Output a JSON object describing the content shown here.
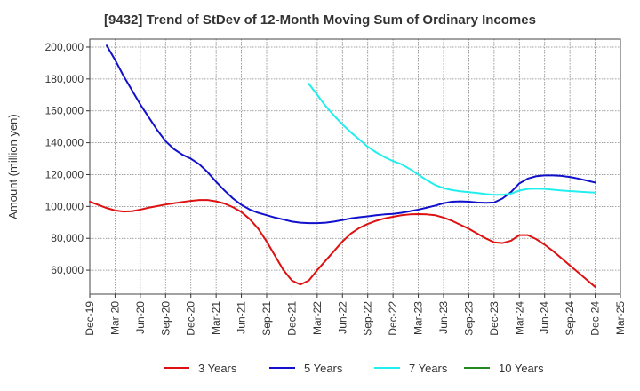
{
  "chart_data": {
    "type": "line",
    "title": "[9432]  Trend of StDev of 12-Month Moving Sum of Ordinary Incomes",
    "ylabel": "Amount (million yen)",
    "xlabel": "",
    "ylim": [
      45000,
      205000
    ],
    "yticks": [
      60000,
      80000,
      100000,
      120000,
      140000,
      160000,
      180000,
      200000
    ],
    "ytick_labels": [
      "60,000",
      "80,000",
      "100,000",
      "120,000",
      "140,000",
      "160,000",
      "180,000",
      "200,000"
    ],
    "xticks": [
      "Dec-19",
      "Mar-20",
      "Jun-20",
      "Sep-20",
      "Dec-20",
      "Mar-21",
      "Jun-21",
      "Sep-21",
      "Dec-21",
      "Mar-22",
      "Jun-22",
      "Sep-22",
      "Dec-22",
      "Mar-23",
      "Jun-23",
      "Sep-23",
      "Dec-23",
      "Mar-24",
      "Jun-24",
      "Sep-24",
      "Dec-24",
      "Mar-25"
    ],
    "grid": true,
    "legend_position": "bottom",
    "series": [
      {
        "name": "3 Years",
        "color": "#dd1111",
        "points": [
          [
            "Dec-19",
            103000
          ],
          [
            "Jan-20",
            101000
          ],
          [
            "Feb-20",
            99000
          ],
          [
            "Mar-20",
            97500
          ],
          [
            "Apr-20",
            96800
          ],
          [
            "May-20",
            97000
          ],
          [
            "Jun-20",
            98000
          ],
          [
            "Jul-20",
            99200
          ],
          [
            "Aug-20",
            100200
          ],
          [
            "Sep-20",
            101200
          ],
          [
            "Oct-20",
            102000
          ],
          [
            "Nov-20",
            102800
          ],
          [
            "Dec-20",
            103500
          ],
          [
            "Jan-21",
            104000
          ],
          [
            "Feb-21",
            104000
          ],
          [
            "Mar-21",
            103200
          ],
          [
            "Apr-21",
            101800
          ],
          [
            "May-21",
            99500
          ],
          [
            "Jun-21",
            96500
          ],
          [
            "Jul-21",
            92000
          ],
          [
            "Aug-21",
            86000
          ],
          [
            "Sep-21",
            78000
          ],
          [
            "Oct-21",
            69000
          ],
          [
            "Nov-21",
            60000
          ],
          [
            "Dec-21",
            53500
          ],
          [
            "Jan-22",
            51000
          ],
          [
            "Feb-22",
            53500
          ],
          [
            "Mar-22",
            60000
          ],
          [
            "Apr-22",
            66000
          ],
          [
            "May-22",
            72000
          ],
          [
            "Jun-22",
            78000
          ],
          [
            "Jul-22",
            83000
          ],
          [
            "Aug-22",
            86500
          ],
          [
            "Sep-22",
            89000
          ],
          [
            "Oct-22",
            91000
          ],
          [
            "Nov-22",
            92500
          ],
          [
            "Dec-22",
            93500
          ],
          [
            "Jan-23",
            94500
          ],
          [
            "Feb-23",
            95000
          ],
          [
            "Mar-23",
            95200
          ],
          [
            "Apr-23",
            95000
          ],
          [
            "May-23",
            94500
          ],
          [
            "Jun-23",
            93000
          ],
          [
            "Jul-23",
            91000
          ],
          [
            "Aug-23",
            88500
          ],
          [
            "Sep-23",
            86000
          ],
          [
            "Oct-23",
            83000
          ],
          [
            "Nov-23",
            80000
          ],
          [
            "Dec-23",
            77500
          ],
          [
            "Jan-24",
            77000
          ],
          [
            "Feb-24",
            78500
          ],
          [
            "Mar-24",
            82000
          ],
          [
            "Apr-24",
            82000
          ],
          [
            "May-24",
            79500
          ],
          [
            "Jun-24",
            76000
          ],
          [
            "Jul-24",
            72000
          ],
          [
            "Aug-24",
            67500
          ],
          [
            "Sep-24",
            63000
          ],
          [
            "Oct-24",
            58500
          ],
          [
            "Nov-24",
            54000
          ],
          [
            "Dec-24",
            49500
          ]
        ]
      },
      {
        "name": "5 Years",
        "color": "#1111cc",
        "points": [
          [
            "Feb-20",
            201000
          ],
          [
            "Mar-20",
            192000
          ],
          [
            "Apr-20",
            182000
          ],
          [
            "May-20",
            173000
          ],
          [
            "Jun-20",
            164000
          ],
          [
            "Jul-20",
            156000
          ],
          [
            "Aug-20",
            148000
          ],
          [
            "Sep-20",
            141000
          ],
          [
            "Oct-20",
            136000
          ],
          [
            "Nov-20",
            132500
          ],
          [
            "Dec-20",
            130000
          ],
          [
            "Jan-21",
            126500
          ],
          [
            "Feb-21",
            121500
          ],
          [
            "Mar-21",
            115500
          ],
          [
            "Apr-21",
            110000
          ],
          [
            "May-21",
            105000
          ],
          [
            "Jun-21",
            101000
          ],
          [
            "Jul-21",
            98000
          ],
          [
            "Aug-21",
            96000
          ],
          [
            "Sep-21",
            94500
          ],
          [
            "Oct-21",
            93000
          ],
          [
            "Nov-21",
            91800
          ],
          [
            "Dec-21",
            90500
          ],
          [
            "Jan-22",
            89800
          ],
          [
            "Feb-22",
            89500
          ],
          [
            "Mar-22",
            89500
          ],
          [
            "Apr-22",
            89800
          ],
          [
            "May-22",
            90500
          ],
          [
            "Jun-22",
            91500
          ],
          [
            "Jul-22",
            92500
          ],
          [
            "Aug-22",
            93200
          ],
          [
            "Sep-22",
            93800
          ],
          [
            "Oct-22",
            94500
          ],
          [
            "Nov-22",
            95000
          ],
          [
            "Dec-22",
            95300
          ],
          [
            "Jan-23",
            96000
          ],
          [
            "Feb-23",
            97000
          ],
          [
            "Mar-23",
            98000
          ],
          [
            "Apr-23",
            99200
          ],
          [
            "May-23",
            100500
          ],
          [
            "Jun-23",
            102000
          ],
          [
            "Jul-23",
            103000
          ],
          [
            "Aug-23",
            103200
          ],
          [
            "Sep-23",
            103000
          ],
          [
            "Oct-23",
            102500
          ],
          [
            "Nov-23",
            102300
          ],
          [
            "Dec-23",
            102500
          ],
          [
            "Jan-24",
            105000
          ],
          [
            "Feb-24",
            109000
          ],
          [
            "Mar-24",
            114500
          ],
          [
            "Apr-24",
            117500
          ],
          [
            "May-24",
            119000
          ],
          [
            "Jun-24",
            119500
          ],
          [
            "Jul-24",
            119500
          ],
          [
            "Aug-24",
            119200
          ],
          [
            "Sep-24",
            118500
          ],
          [
            "Oct-24",
            117500
          ],
          [
            "Nov-24",
            116300
          ],
          [
            "Dec-24",
            115000
          ]
        ]
      },
      {
        "name": "7 Years",
        "color": "#22eeee",
        "points": [
          [
            "Feb-22",
            177000
          ],
          [
            "Mar-22",
            170000
          ],
          [
            "Apr-22",
            163000
          ],
          [
            "May-22",
            157000
          ],
          [
            "Jun-22",
            151500
          ],
          [
            "Jul-22",
            146500
          ],
          [
            "Aug-22",
            142000
          ],
          [
            "Sep-22",
            137500
          ],
          [
            "Oct-22",
            134000
          ],
          [
            "Nov-22",
            131000
          ],
          [
            "Dec-22",
            128500
          ],
          [
            "Jan-23",
            126500
          ],
          [
            "Feb-23",
            123500
          ],
          [
            "Mar-23",
            120000
          ],
          [
            "Apr-23",
            116500
          ],
          [
            "May-23",
            113500
          ],
          [
            "Jun-23",
            111500
          ],
          [
            "Jul-23",
            110300
          ],
          [
            "Aug-23",
            109500
          ],
          [
            "Sep-23",
            109000
          ],
          [
            "Oct-23",
            108500
          ],
          [
            "Nov-23",
            107800
          ],
          [
            "Dec-23",
            107300
          ],
          [
            "Jan-24",
            107300
          ],
          [
            "Feb-24",
            108000
          ],
          [
            "Mar-24",
            110000
          ],
          [
            "Apr-24",
            111000
          ],
          [
            "May-24",
            111200
          ],
          [
            "Jun-24",
            111000
          ],
          [
            "Jul-24",
            110500
          ],
          [
            "Aug-24",
            110000
          ],
          [
            "Sep-24",
            109700
          ],
          [
            "Oct-24",
            109300
          ],
          [
            "Nov-24",
            109000
          ],
          [
            "Dec-24",
            108700
          ]
        ]
      },
      {
        "name": "10 Years",
        "color": "#228822",
        "points": []
      }
    ]
  }
}
